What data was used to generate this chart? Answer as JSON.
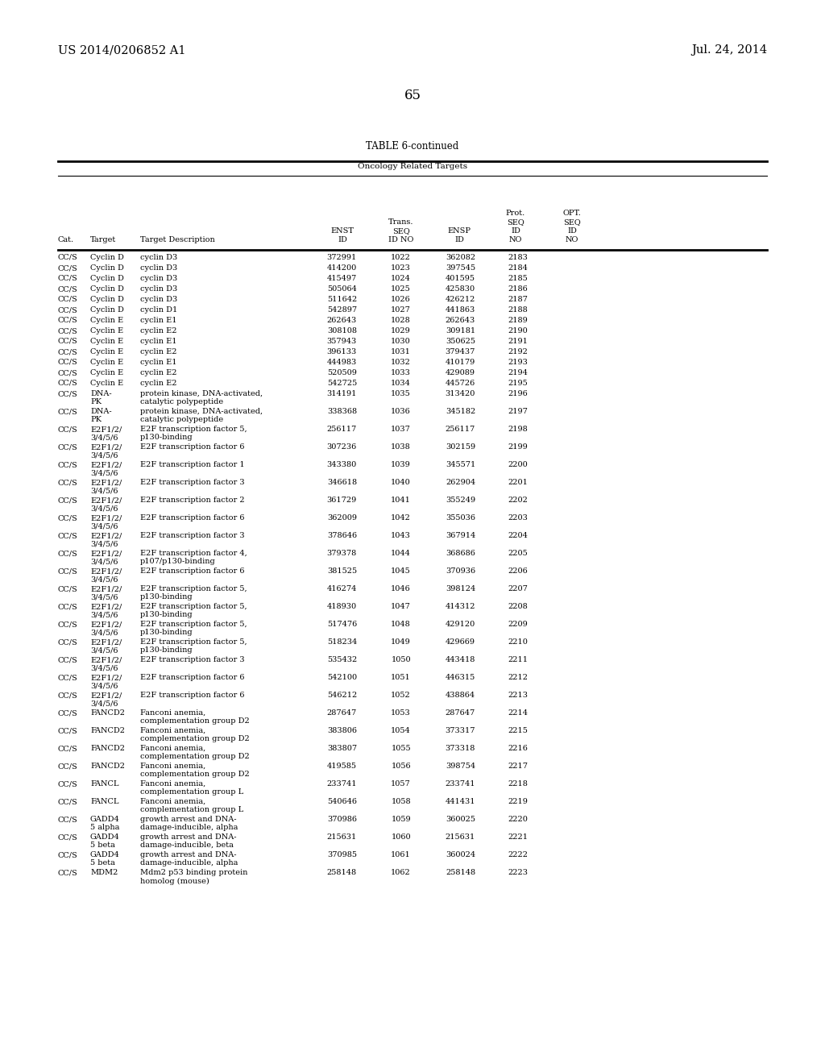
{
  "header_left": "US 2014/0206852 A1",
  "header_right": "Jul. 24, 2014",
  "page_number": "65",
  "table_title": "TABLE 6-continued",
  "table_subtitle": "Oncology Related Targets",
  "rows": [
    [
      "CC/S",
      "Cyclin D",
      "cyclin D3",
      "372991",
      "1022",
      "362082",
      "2183",
      ""
    ],
    [
      "CC/S",
      "Cyclin D",
      "cyclin D3",
      "414200",
      "1023",
      "397545",
      "2184",
      ""
    ],
    [
      "CC/S",
      "Cyclin D",
      "cyclin D3",
      "415497",
      "1024",
      "401595",
      "2185",
      ""
    ],
    [
      "CC/S",
      "Cyclin D",
      "cyclin D3",
      "505064",
      "1025",
      "425830",
      "2186",
      ""
    ],
    [
      "CC/S",
      "Cyclin D",
      "cyclin D3",
      "511642",
      "1026",
      "426212",
      "2187",
      ""
    ],
    [
      "CC/S",
      "Cyclin D",
      "cyclin D1",
      "542897",
      "1027",
      "441863",
      "2188",
      ""
    ],
    [
      "CC/S",
      "Cyclin E",
      "cyclin E1",
      "262643",
      "1028",
      "262643",
      "2189",
      ""
    ],
    [
      "CC/S",
      "Cyclin E",
      "cyclin E2",
      "308108",
      "1029",
      "309181",
      "2190",
      ""
    ],
    [
      "CC/S",
      "Cyclin E",
      "cyclin E1",
      "357943",
      "1030",
      "350625",
      "2191",
      ""
    ],
    [
      "CC/S",
      "Cyclin E",
      "cyclin E2",
      "396133",
      "1031",
      "379437",
      "2192",
      ""
    ],
    [
      "CC/S",
      "Cyclin E",
      "cyclin E1",
      "444983",
      "1032",
      "410179",
      "2193",
      ""
    ],
    [
      "CC/S",
      "Cyclin E",
      "cyclin E2",
      "520509",
      "1033",
      "429089",
      "2194",
      ""
    ],
    [
      "CC/S",
      "Cyclin E",
      "cyclin E2",
      "542725",
      "1034",
      "445726",
      "2195",
      ""
    ],
    [
      "CC/S",
      "DNA-\nPK",
      "protein kinase, DNA-activated,\ncatalytic polypeptide",
      "314191",
      "1035",
      "313420",
      "2196",
      ""
    ],
    [
      "CC/S",
      "DNA-\nPK",
      "protein kinase, DNA-activated,\ncatalytic polypeptide",
      "338368",
      "1036",
      "345182",
      "2197",
      ""
    ],
    [
      "CC/S",
      "E2F1/2/\n3/4/5/6",
      "E2F transcription factor 5,\np130-binding",
      "256117",
      "1037",
      "256117",
      "2198",
      ""
    ],
    [
      "CC/S",
      "E2F1/2/\n3/4/5/6",
      "E2F transcription factor 6",
      "307236",
      "1038",
      "302159",
      "2199",
      ""
    ],
    [
      "CC/S",
      "E2F1/2/\n3/4/5/6",
      "E2F transcription factor 1",
      "343380",
      "1039",
      "345571",
      "2200",
      ""
    ],
    [
      "CC/S",
      "E2F1/2/\n3/4/5/6",
      "E2F transcription factor 3",
      "346618",
      "1040",
      "262904",
      "2201",
      ""
    ],
    [
      "CC/S",
      "E2F1/2/\n3/4/5/6",
      "E2F transcription factor 2",
      "361729",
      "1041",
      "355249",
      "2202",
      ""
    ],
    [
      "CC/S",
      "E2F1/2/\n3/4/5/6",
      "E2F transcription factor 6",
      "362009",
      "1042",
      "355036",
      "2203",
      ""
    ],
    [
      "CC/S",
      "E2F1/2/\n3/4/5/6",
      "E2F transcription factor 3",
      "378646",
      "1043",
      "367914",
      "2204",
      ""
    ],
    [
      "CC/S",
      "E2F1/2/\n3/4/5/6",
      "E2F transcription factor 4,\np107/p130-binding",
      "379378",
      "1044",
      "368686",
      "2205",
      ""
    ],
    [
      "CC/S",
      "E2F1/2/\n3/4/5/6",
      "E2F transcription factor 6",
      "381525",
      "1045",
      "370936",
      "2206",
      ""
    ],
    [
      "CC/S",
      "E2F1/2/\n3/4/5/6",
      "E2F transcription factor 5,\np130-binding",
      "416274",
      "1046",
      "398124",
      "2207",
      ""
    ],
    [
      "CC/S",
      "E2F1/2/\n3/4/5/6",
      "E2F transcription factor 5,\np130-binding",
      "418930",
      "1047",
      "414312",
      "2208",
      ""
    ],
    [
      "CC/S",
      "E2F1/2/\n3/4/5/6",
      "E2F transcription factor 5,\np130-binding",
      "517476",
      "1048",
      "429120",
      "2209",
      ""
    ],
    [
      "CC/S",
      "E2F1/2/\n3/4/5/6",
      "E2F transcription factor 5,\np130-binding",
      "518234",
      "1049",
      "429669",
      "2210",
      ""
    ],
    [
      "CC/S",
      "E2F1/2/\n3/4/5/6",
      "E2F transcription factor 3",
      "535432",
      "1050",
      "443418",
      "2211",
      ""
    ],
    [
      "CC/S",
      "E2F1/2/\n3/4/5/6",
      "E2F transcription factor 6",
      "542100",
      "1051",
      "446315",
      "2212",
      ""
    ],
    [
      "CC/S",
      "E2F1/2/\n3/4/5/6",
      "E2F transcription factor 6",
      "546212",
      "1052",
      "438864",
      "2213",
      ""
    ],
    [
      "CC/S",
      "FANCD2",
      "Fanconi anemia,\ncomplementation group D2",
      "287647",
      "1053",
      "287647",
      "2214",
      ""
    ],
    [
      "CC/S",
      "FANCD2",
      "Fanconi anemia,\ncomplementation group D2",
      "383806",
      "1054",
      "373317",
      "2215",
      ""
    ],
    [
      "CC/S",
      "FANCD2",
      "Fanconi anemia,\ncomplementation group D2",
      "383807",
      "1055",
      "373318",
      "2216",
      ""
    ],
    [
      "CC/S",
      "FANCD2",
      "Fanconi anemia,\ncomplementation group D2",
      "419585",
      "1056",
      "398754",
      "2217",
      ""
    ],
    [
      "CC/S",
      "FANCL",
      "Fanconi anemia,\ncomplementation group L",
      "233741",
      "1057",
      "233741",
      "2218",
      ""
    ],
    [
      "CC/S",
      "FANCL",
      "Fanconi anemia,\ncomplementation group L",
      "540646",
      "1058",
      "441431",
      "2219",
      ""
    ],
    [
      "CC/S",
      "GADD4\n5 alpha",
      "growth arrest and DNA-\ndamage-inducible, alpha",
      "370986",
      "1059",
      "360025",
      "2220",
      ""
    ],
    [
      "CC/S",
      "GADD4\n5 beta",
      "growth arrest and DNA-\ndamage-inducible, beta",
      "215631",
      "1060",
      "215631",
      "2221",
      ""
    ],
    [
      "CC/S",
      "GADD4\n5 beta",
      "growth arrest and DNA-\ndamage-inducible, alpha",
      "370985",
      "1061",
      "360024",
      "2222",
      ""
    ],
    [
      "CC/S",
      "MDM2",
      "Mdm2 p53 binding protein\nhomolog (mouse)",
      "258148",
      "1062",
      "258148",
      "2223",
      ""
    ]
  ],
  "bg_color": "#ffffff",
  "text_color": "#000000",
  "font_size": 7.0,
  "header_font_size": 10.5
}
